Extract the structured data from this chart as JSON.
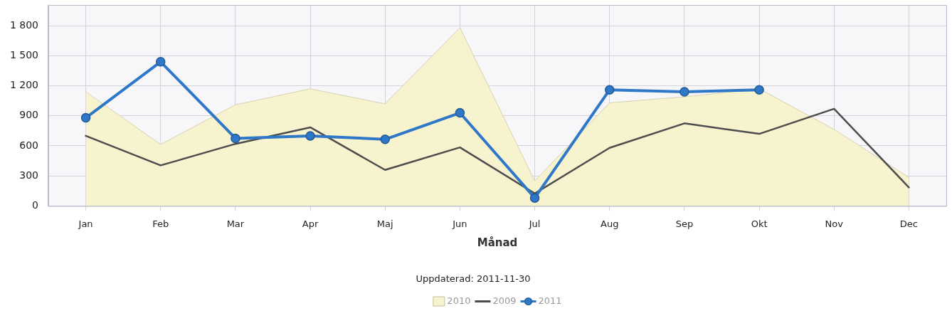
{
  "chart_data": {
    "type": "line",
    "categories": [
      "Jan",
      "Feb",
      "Mar",
      "Apr",
      "Maj",
      "Jun",
      "Jul",
      "Aug",
      "Sep",
      "Okt",
      "Nov",
      "Dec"
    ],
    "series": [
      {
        "name": "2010",
        "type": "area",
        "color": "#f8f3cf",
        "values": [
          1140,
          615,
          1010,
          1170,
          1020,
          1780,
          250,
          1030,
          1090,
          1170,
          765,
          285
        ]
      },
      {
        "name": "2009",
        "type": "line",
        "color": "#4d4d4d",
        "values": [
          700,
          405,
          620,
          785,
          360,
          585,
          125,
          580,
          825,
          720,
          970,
          185
        ]
      },
      {
        "name": "2011",
        "color": "#2f78c8",
        "marker": "circle",
        "values": [
          880,
          1440,
          675,
          700,
          665,
          930,
          80,
          1160,
          1140,
          1160,
          null,
          null
        ]
      }
    ],
    "xlabel": "Månad",
    "annotations": [
      "Uppdaterad: 2011-11-30"
    ],
    "ylim": [
      0,
      2000
    ],
    "yticks": [
      0,
      300,
      600,
      900,
      {
        "value": 1200,
        "label": "1 200"
      },
      {
        "value": 1500,
        "label": "1 500"
      },
      {
        "value": 1800,
        "label": "1 800"
      }
    ],
    "grid": true,
    "legend": "bottom"
  }
}
